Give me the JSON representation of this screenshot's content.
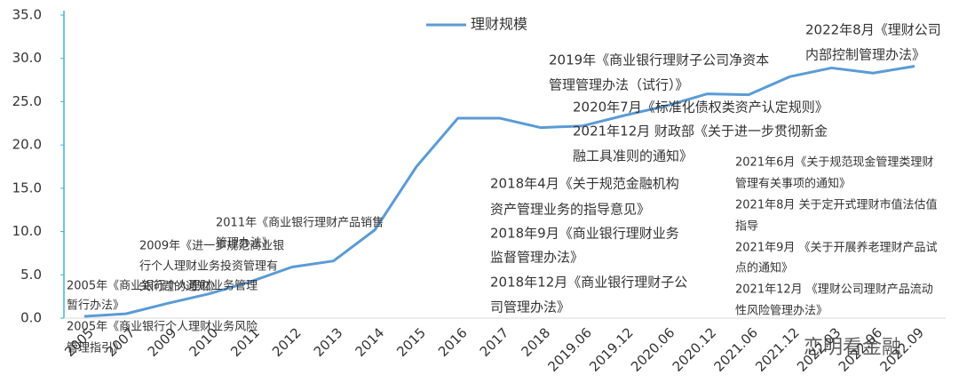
{
  "chart_data": {
    "type": "line",
    "categories": [
      "2005",
      "2007",
      "2009",
      "2010",
      "2011",
      "2012",
      "2013",
      "2014",
      "2015",
      "2016",
      "2017",
      "2018",
      "2019.06",
      "2019.12",
      "2020.06",
      "2020.12",
      "2021.06",
      "2021.12",
      "2022.03",
      "2022.06",
      "2022.09"
    ],
    "series": [
      {
        "name": "理财规模",
        "color": "#5b9bd5",
        "values": [
          0.2,
          0.5,
          1.7,
          2.8,
          4.2,
          5.9,
          6.6,
          10.2,
          17.5,
          23.1,
          23.1,
          22.0,
          22.2,
          23.4,
          24.5,
          25.9,
          25.8,
          27.9,
          28.9,
          28.3,
          29.1
        ]
      }
    ],
    "ylim": [
      0,
      35
    ],
    "yticks": [
      {
        "value": 0,
        "label": "0.0"
      },
      {
        "value": 5,
        "label": "5.0"
      },
      {
        "value": 10,
        "label": "10.0"
      },
      {
        "value": 15,
        "label": "15.0"
      },
      {
        "value": 20,
        "label": "20.0"
      },
      {
        "value": 25,
        "label": "25.0"
      },
      {
        "value": 30,
        "label": "30.0"
      },
      {
        "value": 35,
        "label": "35.0"
      }
    ],
    "grid": false,
    "annotations": [
      "2005年《商业银行个人理财业务管理",
      "暂行办法》",
      "2005年《商业银行个人理财业务风险",
      "管理指引》",
      "2009年《进一步规范商业银",
      "行个人理财业务投资管理有",
      "关问题的通知》",
      "2011年《商业银行理财产品销售",
      "管理办法》",
      "2018年4月《关于规范金融机构",
      "资产管理业务的指导意见》",
      "2018年9月《商业银行理财业务",
      "监督管理办法》",
      "2018年12月《商业银行理财子公",
      "司管理办法》",
      "2019年《商业银行理财子公司净资本",
      "管理管理办法（试行）》",
      "2020年7月《标准化债权类资产认定规则》",
      "2021年12月 财政部《关于进一步贯彻新金",
      "融工具准则的通知》",
      "2022年8月《理财公司",
      "内部控制管理办法》",
      "2021年6月《关于规范现金管理类理财",
      "管理有关事项的通知》",
      "2021年8月 关于定开式理财市值法估值",
      "指导",
      "2021年9月 《关于开展养老理财产品试",
      "点的通知》",
      "2021年12月 《理财公司理财产品流动",
      "性风险管理办法》"
    ],
    "watermark": "恋明看金融"
  }
}
